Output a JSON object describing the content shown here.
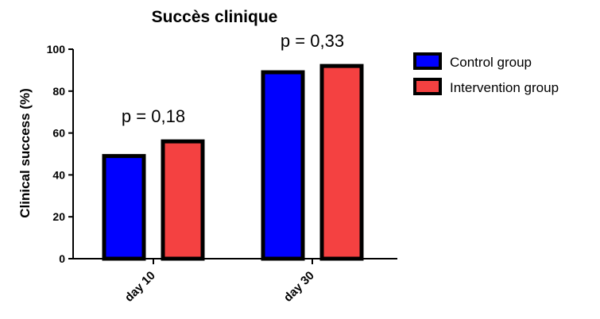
{
  "chart_data": {
    "type": "bar",
    "title": "Succès clinique",
    "xlabel": "",
    "ylabel": "Clinical success (%)",
    "ylim": [
      0,
      100
    ],
    "yticks": [
      0,
      20,
      40,
      60,
      80,
      100
    ],
    "categories": [
      "day 10",
      "day 30"
    ],
    "series": [
      {
        "name": "Control group",
        "values": [
          49,
          89
        ],
        "color": "#0000ff"
      },
      {
        "name": "Intervention group",
        "values": [
          56,
          92
        ],
        "color": "#f44141"
      }
    ],
    "annotations": [
      "p = 0,18",
      "p = 0,33"
    ],
    "legend_position": "top-right",
    "grid": false
  }
}
